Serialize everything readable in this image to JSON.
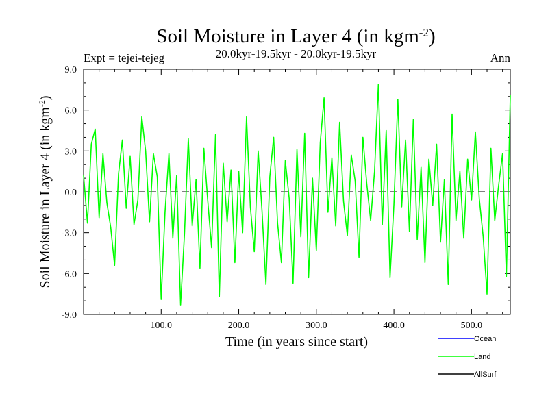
{
  "chart_data": {
    "type": "line",
    "title": "Soil Moisture in Layer 4 (in kgm",
    "title_sup": "-2",
    "title_close": ")",
    "subtitle_left": "Expt = tejei-tejeg",
    "subtitle_center": "20.0kyr-19.5kyr - 20.0kyr-19.5kyr",
    "subtitle_right": "Ann",
    "xlabel": "Time (in years since start)",
    "ylabel": "Soil Moisture in Layer 4 (in kgm",
    "ylabel_sup": "-2",
    "ylabel_close": ")",
    "xlim": [
      0,
      550
    ],
    "ylim": [
      -9,
      9
    ],
    "xticks": [
      100,
      200,
      300,
      400,
      500
    ],
    "xtick_labels": [
      "100.0",
      "200.0",
      "300.0",
      "400.0",
      "500.0"
    ],
    "yticks": [
      -9,
      -6,
      -3,
      0,
      3,
      6,
      9
    ],
    "ytick_labels": [
      "-9.0",
      "-6.0",
      "-3.0",
      "0.0",
      "3.0",
      "6.0",
      "9.0"
    ],
    "zero_line": true,
    "legend_position": "bottom-right",
    "series": [
      {
        "name": "Ocean",
        "color": "#0000ff",
        "x": [],
        "values": []
      },
      {
        "name": "Land",
        "color": "#00ff00",
        "x": [
          0,
          5,
          10,
          15,
          20,
          25,
          30,
          35,
          40,
          45,
          50,
          55,
          60,
          65,
          70,
          75,
          80,
          85,
          90,
          95,
          100,
          105,
          110,
          115,
          120,
          125,
          130,
          135,
          140,
          145,
          150,
          155,
          160,
          165,
          170,
          175,
          180,
          185,
          190,
          195,
          200,
          205,
          210,
          215,
          220,
          225,
          230,
          235,
          240,
          245,
          250,
          255,
          260,
          265,
          270,
          275,
          280,
          285,
          290,
          295,
          300,
          305,
          310,
          315,
          320,
          325,
          330,
          335,
          340,
          345,
          350,
          355,
          360,
          365,
          370,
          375,
          380,
          385,
          390,
          395,
          400,
          405,
          410,
          415,
          420,
          425,
          430,
          435,
          440,
          445,
          450,
          455,
          460,
          465,
          470,
          475,
          480,
          485,
          490,
          495,
          500,
          505,
          510,
          515,
          520,
          525,
          530,
          535,
          540,
          545,
          550
        ],
        "values": [
          1.2,
          -2.3,
          3.5,
          4.6,
          -1.9,
          2.8,
          -0.8,
          -2.6,
          -5.4,
          1.3,
          3.8,
          -1.2,
          2.6,
          -2.4,
          -0.6,
          5.5,
          3.0,
          -2.2,
          2.8,
          1.1,
          -7.9,
          -1.5,
          2.8,
          -3.4,
          1.2,
          -8.3,
          -3.1,
          3.9,
          -2.5,
          0.9,
          -5.6,
          3.2,
          -0.6,
          -4.1,
          4.2,
          -7.7,
          2.1,
          -2.2,
          1.6,
          -5.2,
          1.5,
          -3.0,
          5.5,
          -1.1,
          -4.4,
          3.0,
          -1.4,
          -6.8,
          1.1,
          4.0,
          -2.3,
          -5.2,
          2.3,
          -0.5,
          -6.7,
          3.1,
          -3.3,
          4.3,
          -6.3,
          1.0,
          -4.3,
          3.6,
          6.9,
          -1.5,
          2.5,
          -2.5,
          5.1,
          -0.7,
          -3.2,
          2.7,
          0.8,
          -4.8,
          4.0,
          0.6,
          -2.1,
          1.5,
          7.9,
          -2.4,
          4.5,
          -6.3,
          -0.9,
          6.8,
          -1.1,
          3.8,
          -2.9,
          5.3,
          -3.5,
          1.8,
          -5.2,
          2.4,
          -1.0,
          3.5,
          -3.7,
          0.9,
          -6.8,
          5.7,
          -2.1,
          1.5,
          -3.4,
          2.4,
          -0.6,
          4.4,
          -0.5,
          -3.3,
          -7.5,
          3.2,
          -2.1,
          0.5,
          2.8,
          -6.2,
          7.1
        ]
      },
      {
        "name": "AllSurf",
        "color": "#000000",
        "x": [],
        "values": []
      }
    ]
  }
}
